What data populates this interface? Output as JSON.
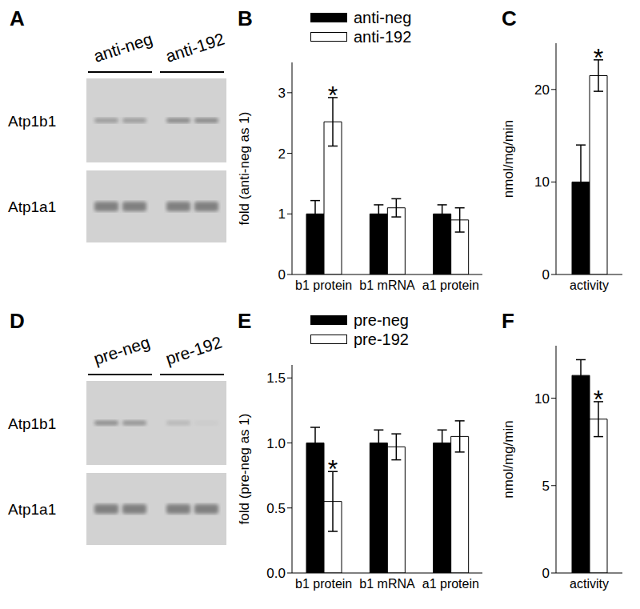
{
  "chart_data": [
    {
      "panel": "B",
      "type": "bar",
      "categories": [
        "b1 protein",
        "b1 mRNA",
        "a1 protein"
      ],
      "y_label": "fold (anti-neg as 1)",
      "ylim": [
        0,
        3.5
      ],
      "yticks": [
        0,
        1,
        2,
        3
      ],
      "legend": "top",
      "series": [
        {
          "name": "anti-neg",
          "color": "#000000",
          "values": [
            1,
            1,
            1
          ],
          "errors": [
            0.22,
            0.15,
            0.15
          ],
          "annotations": [
            null,
            null,
            null
          ]
        },
        {
          "name": "anti-192",
          "color": "#ffffff",
          "values": [
            2.52,
            1.1,
            0.9
          ],
          "errors": [
            0.4,
            0.15,
            0.2
          ],
          "annotations": [
            "*",
            null,
            null
          ]
        }
      ]
    },
    {
      "panel": "C",
      "type": "bar",
      "categories": [
        "activity"
      ],
      "y_label": "nmol/mg/min",
      "ylim": [
        0,
        25
      ],
      "yticks": [
        0,
        10,
        20
      ],
      "series": [
        {
          "name": "anti-neg",
          "color": "#000000",
          "values": [
            10
          ],
          "errors": [
            4
          ],
          "annotations": [
            null
          ]
        },
        {
          "name": "anti-192",
          "color": "#ffffff",
          "values": [
            21.5
          ],
          "errors": [
            1.7
          ],
          "annotations": [
            "*"
          ]
        }
      ]
    },
    {
      "panel": "E",
      "type": "bar",
      "categories": [
        "b1 protein",
        "b1 mRNA",
        "a1 protein"
      ],
      "y_label": "fold (pre-neg as 1)",
      "ylim": [
        0,
        1.6
      ],
      "yticks": [
        {
          "value": 0,
          "label": "0.0"
        },
        0.5,
        {
          "value": 1,
          "label": "1.0"
        },
        1.5
      ],
      "legend": "top",
      "series": [
        {
          "name": "pre-neg",
          "color": "#000000",
          "values": [
            1,
            1,
            1
          ],
          "errors": [
            0.12,
            0.1,
            0.1
          ],
          "annotations": [
            null,
            null,
            null
          ]
        },
        {
          "name": "pre-192",
          "color": "#ffffff",
          "values": [
            0.55,
            0.97,
            1.05
          ],
          "errors": [
            0.23,
            0.1,
            0.12
          ],
          "annotations": [
            "*",
            null,
            null
          ]
        }
      ]
    },
    {
      "panel": "F",
      "type": "bar",
      "categories": [
        "activity"
      ],
      "y_label": "nmol/mg/min",
      "ylim": [
        0,
        13
      ],
      "yticks": [
        0,
        5,
        10
      ],
      "series": [
        {
          "name": "pre-neg",
          "color": "#000000",
          "values": [
            11.3
          ],
          "errors": [
            0.9
          ],
          "annotations": [
            null
          ]
        },
        {
          "name": "pre-192",
          "color": "#ffffff",
          "values": [
            8.8
          ],
          "errors": [
            1.0
          ],
          "annotations": [
            "*"
          ]
        }
      ]
    }
  ],
  "blots": [
    {
      "panel": "A",
      "groups": [
        "anti-neg",
        "anti-192"
      ],
      "rows": [
        "Atp1b1",
        "Atp1a1"
      ]
    },
    {
      "panel": "D",
      "groups": [
        "pre-neg",
        "pre-192"
      ],
      "rows": [
        "Atp1b1",
        "Atp1a1"
      ]
    }
  ]
}
